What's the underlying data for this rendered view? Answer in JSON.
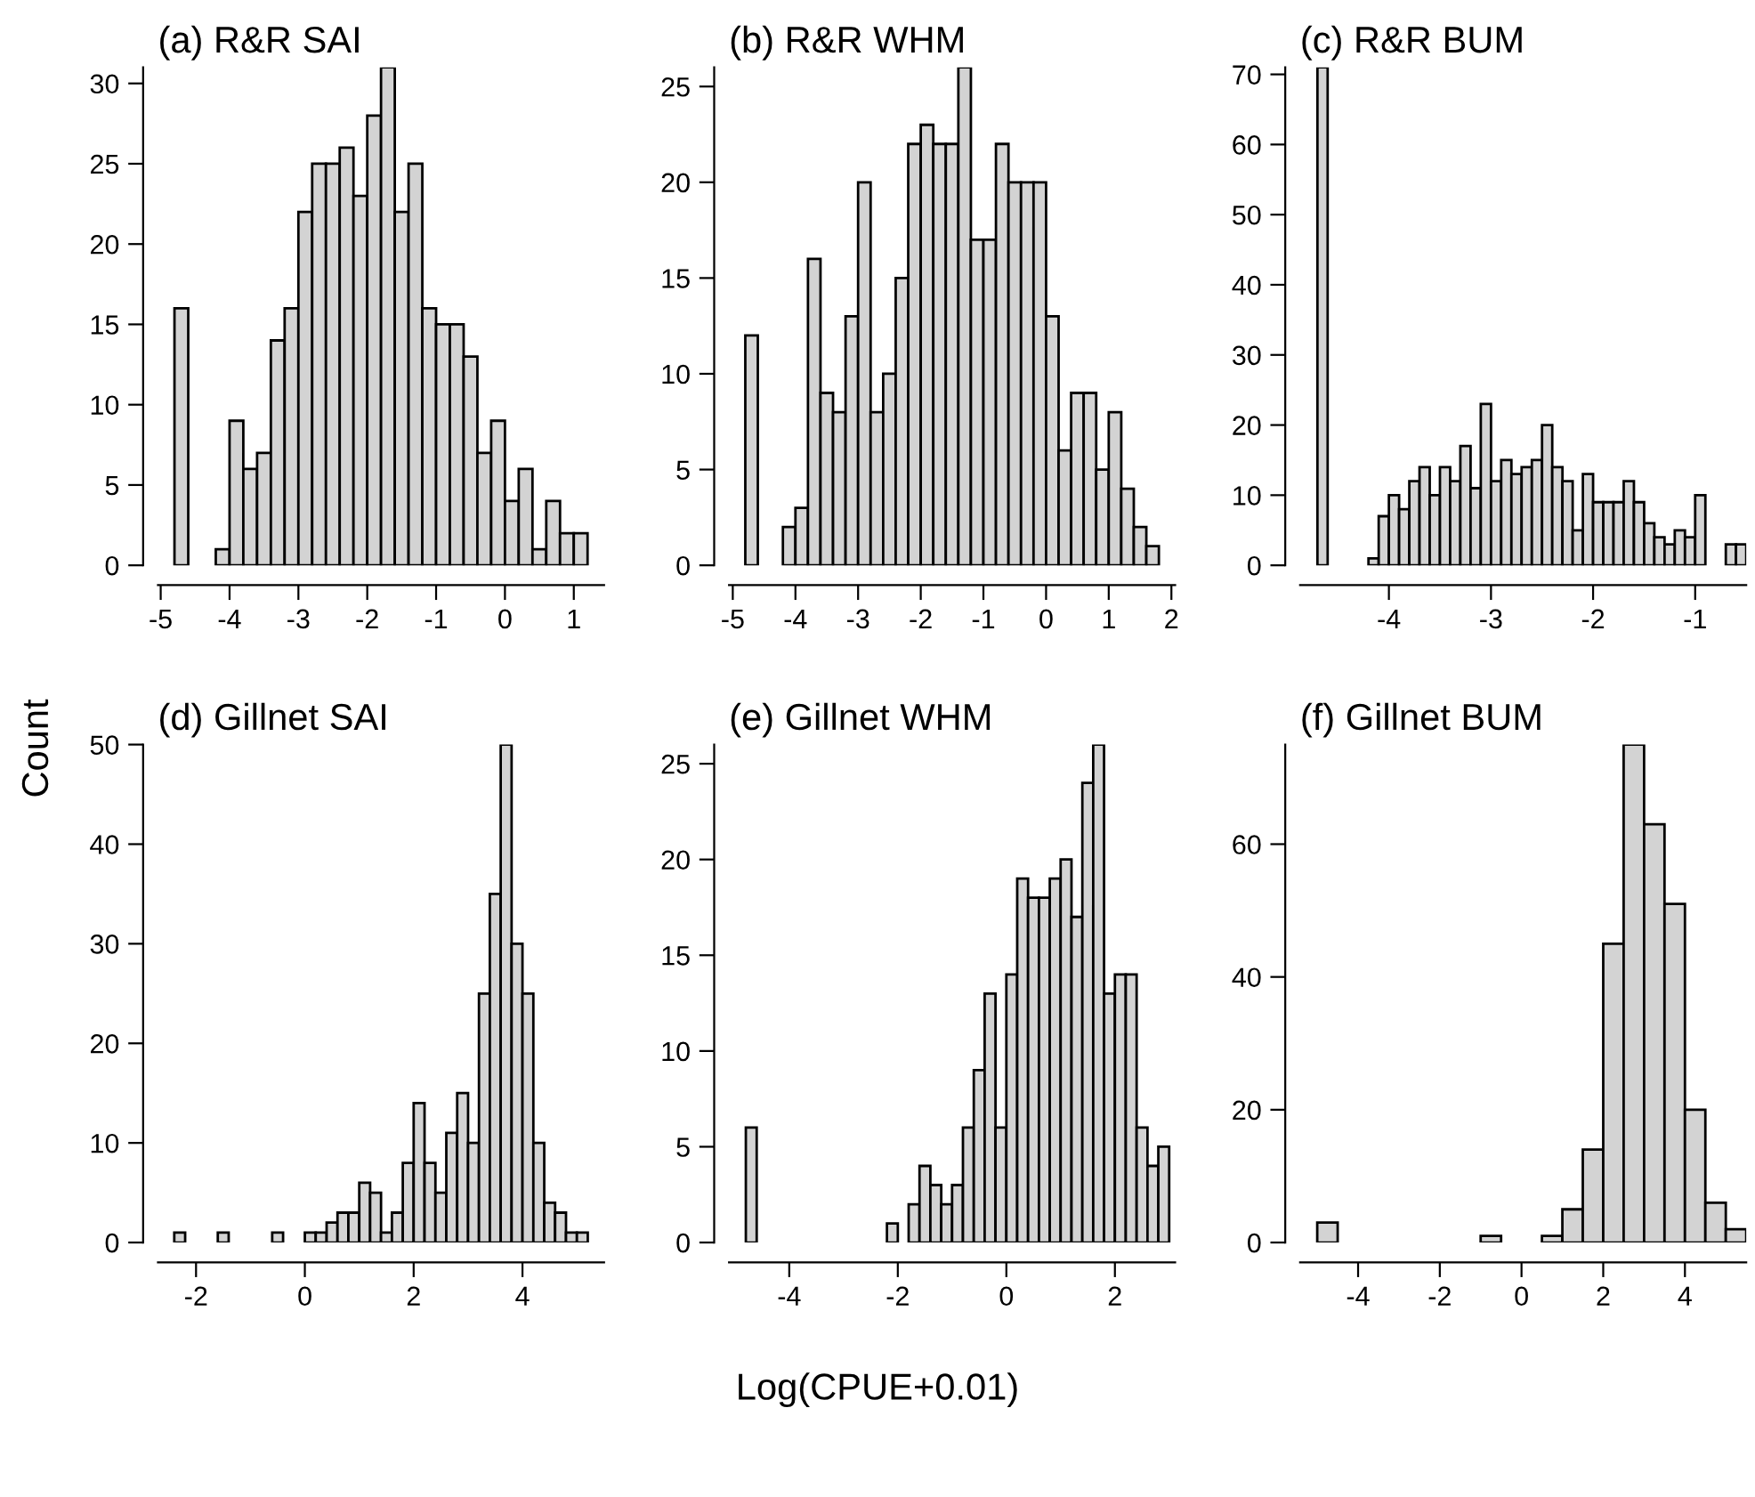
{
  "chart_data": [
    {
      "type": "histogram",
      "title": "(a) R&R SAI",
      "color": "#d3d3d3",
      "bins": [
        -4.8,
        -4.6,
        -4.4,
        -4.2,
        -4.0,
        -3.8,
        -3.6,
        -3.4,
        -3.2,
        -3.0,
        -2.8,
        -2.6,
        -2.4,
        -2.2,
        -2.0,
        -1.8,
        -1.6,
        -1.4,
        -1.2,
        -1.0,
        -0.8,
        -0.6,
        -0.4,
        -0.2,
        0.0,
        0.2,
        0.4,
        0.6,
        0.8,
        1.0,
        1.2
      ],
      "values": [
        16,
        0,
        0,
        1,
        9,
        6,
        7,
        14,
        16,
        22,
        25,
        25,
        26,
        23,
        28,
        31,
        22,
        25,
        16,
        15,
        15,
        13,
        7,
        9,
        4,
        6,
        1,
        4,
        2,
        2
      ],
      "xlim": [
        -5.04,
        1.44
      ],
      "xticks": [
        -5,
        -4,
        -3,
        -2,
        -1,
        0,
        1
      ],
      "ylim": [
        0,
        31
      ],
      "yticks": [
        0,
        5,
        10,
        15,
        20,
        25,
        30
      ]
    },
    {
      "type": "histogram",
      "title": "(b) R&R WHM",
      "color": "#d3d3d3",
      "bins": [
        -4.8,
        -4.6,
        -4.4,
        -4.2,
        -4.0,
        -3.8,
        -3.6,
        -3.4,
        -3.2,
        -3.0,
        -2.8,
        -2.6,
        -2.4,
        -2.2,
        -2.0,
        -1.8,
        -1.6,
        -1.4,
        -1.2,
        -1.0,
        -0.8,
        -0.6,
        -0.4,
        -0.2,
        0.0,
        0.2,
        0.4,
        0.6,
        0.8,
        1.0,
        1.2,
        1.4,
        1.6,
        1.8
      ],
      "values": [
        12,
        0,
        0,
        2,
        3,
        16,
        9,
        8,
        13,
        20,
        8,
        10,
        15,
        22,
        23,
        22,
        22,
        26,
        17,
        17,
        22,
        20,
        20,
        20,
        13,
        6,
        9,
        9,
        5,
        8,
        4,
        2,
        1
      ],
      "xlim": [
        -5.06,
        2.06
      ],
      "xticks": [
        -5,
        -4,
        -3,
        -2,
        -1,
        0,
        1,
        2
      ],
      "ylim": [
        0,
        26
      ],
      "yticks": [
        0,
        5,
        10,
        15,
        20,
        25
      ]
    },
    {
      "type": "histogram",
      "title": "(c) R&R BUM",
      "color": "#d3d3d3",
      "bins": [
        -4.7,
        -4.6,
        -4.5,
        -4.4,
        -4.3,
        -4.2,
        -4.1,
        -4.0,
        -3.9,
        -3.8,
        -3.7,
        -3.6,
        -3.5,
        -3.4,
        -3.3,
        -3.2,
        -3.1,
        -3.0,
        -2.9,
        -2.8,
        -2.7,
        -2.6,
        -2.5,
        -2.4,
        -2.3,
        -2.2,
        -2.1,
        -2.0,
        -1.9,
        -1.8,
        -1.7,
        -1.6,
        -1.5,
        -1.4,
        -1.3,
        -1.2,
        -1.1,
        -1.0,
        -0.9,
        -0.8,
        -0.7,
        -0.6,
        -0.5
      ],
      "values": [
        71,
        0,
        0,
        0,
        0,
        1,
        7,
        10,
        8,
        12,
        14,
        10,
        14,
        12,
        17,
        11,
        23,
        12,
        15,
        13,
        14,
        15,
        20,
        14,
        12,
        5,
        13,
        9,
        9,
        9,
        12,
        9,
        6,
        4,
        3,
        5,
        4,
        10,
        0,
        0,
        3,
        3
      ],
      "xlim": [
        -4.87,
        -0.5
      ],
      "xticks": [
        -4,
        -3,
        -2,
        -1
      ],
      "ylim": [
        0,
        71
      ],
      "yticks": [
        0,
        10,
        20,
        30,
        40,
        50,
        60,
        70
      ]
    },
    {
      "type": "histogram",
      "title": "(d) Gillnet SAI",
      "color": "#d3d3d3",
      "bins": [
        -2.4,
        -2.2,
        -2.0,
        -1.8,
        -1.6,
        -1.4,
        -1.2,
        -1.0,
        -0.8,
        -0.6,
        -0.4,
        -0.2,
        0.0,
        0.2,
        0.4,
        0.6,
        0.8,
        1.0,
        1.2,
        1.4,
        1.6,
        1.8,
        2.0,
        2.2,
        2.4,
        2.6,
        2.8,
        3.0,
        3.2,
        3.4,
        3.6,
        3.8,
        4.0,
        4.2,
        4.4,
        4.6,
        4.8,
        5.0,
        5.2
      ],
      "values": [
        1,
        0,
        0,
        0,
        1,
        0,
        0,
        0,
        0,
        1,
        0,
        0,
        1,
        1,
        2,
        3,
        3,
        6,
        5,
        1,
        3,
        8,
        14,
        8,
        5,
        11,
        15,
        10,
        25,
        35,
        50,
        30,
        25,
        10,
        4,
        3,
        1,
        1
      ],
      "xlim": [
        -2.7,
        5.5
      ],
      "xticks": [
        -2,
        0,
        2,
        4
      ],
      "ylim": [
        0,
        50
      ],
      "yticks": [
        0,
        10,
        20,
        30,
        40,
        50
      ]
    },
    {
      "type": "histogram",
      "title": "(e) Gillnet WHM",
      "xlabel": "Log(CPUE+0.01)",
      "color": "#d3d3d3",
      "bins": [
        -4.8,
        -4.6,
        -4.4,
        -4.2,
        -4.0,
        -3.8,
        -3.6,
        -3.4,
        -3.2,
        -3.0,
        -2.8,
        -2.6,
        -2.4,
        -2.2,
        -2.0,
        -1.8,
        -1.6,
        -1.4,
        -1.2,
        -1.0,
        -0.8,
        -0.6,
        -0.4,
        -0.2,
        0.0,
        0.2,
        0.4,
        0.6,
        0.8,
        1.0,
        1.2,
        1.4,
        1.6,
        1.8,
        2.0,
        2.2,
        2.4,
        2.6,
        2.8,
        3.0
      ],
      "values": [
        6,
        0,
        0,
        0,
        0,
        0,
        0,
        0,
        0,
        0,
        0,
        0,
        0,
        1,
        0,
        2,
        4,
        3,
        2,
        3,
        6,
        9,
        13,
        6,
        14,
        19,
        18,
        18,
        19,
        20,
        17,
        24,
        26,
        13,
        14,
        14,
        6,
        4,
        5
      ],
      "xlim": [
        -5.11,
        3.11
      ],
      "xticks": [
        -4,
        -2,
        0,
        2
      ],
      "ylim": [
        0,
        26
      ],
      "yticks": [
        0,
        5,
        10,
        15,
        20,
        25
      ]
    },
    {
      "type": "histogram",
      "title": "(f) Gillnet BUM",
      "ylabel": "Count",
      "color": "#d3d3d3",
      "bins": [
        -5.0,
        -4.5,
        -4.0,
        -3.5,
        -3.0,
        -2.5,
        -2.0,
        -1.5,
        -1.0,
        -0.5,
        0.0,
        0.5,
        1.0,
        1.5,
        2.0,
        2.5,
        3.0,
        3.5,
        4.0,
        4.5,
        5.0,
        5.5
      ],
      "values": [
        3,
        0,
        0,
        0,
        0,
        0,
        0,
        0,
        1,
        0,
        0,
        1,
        5,
        14,
        45,
        75,
        63,
        51,
        20,
        6,
        2
      ],
      "xlim": [
        -5.42,
        5.5
      ],
      "xticks": [
        -4,
        -2,
        0,
        2,
        4
      ],
      "ylim": [
        0,
        75
      ],
      "yticks": [
        0,
        20,
        40,
        60
      ]
    }
  ]
}
